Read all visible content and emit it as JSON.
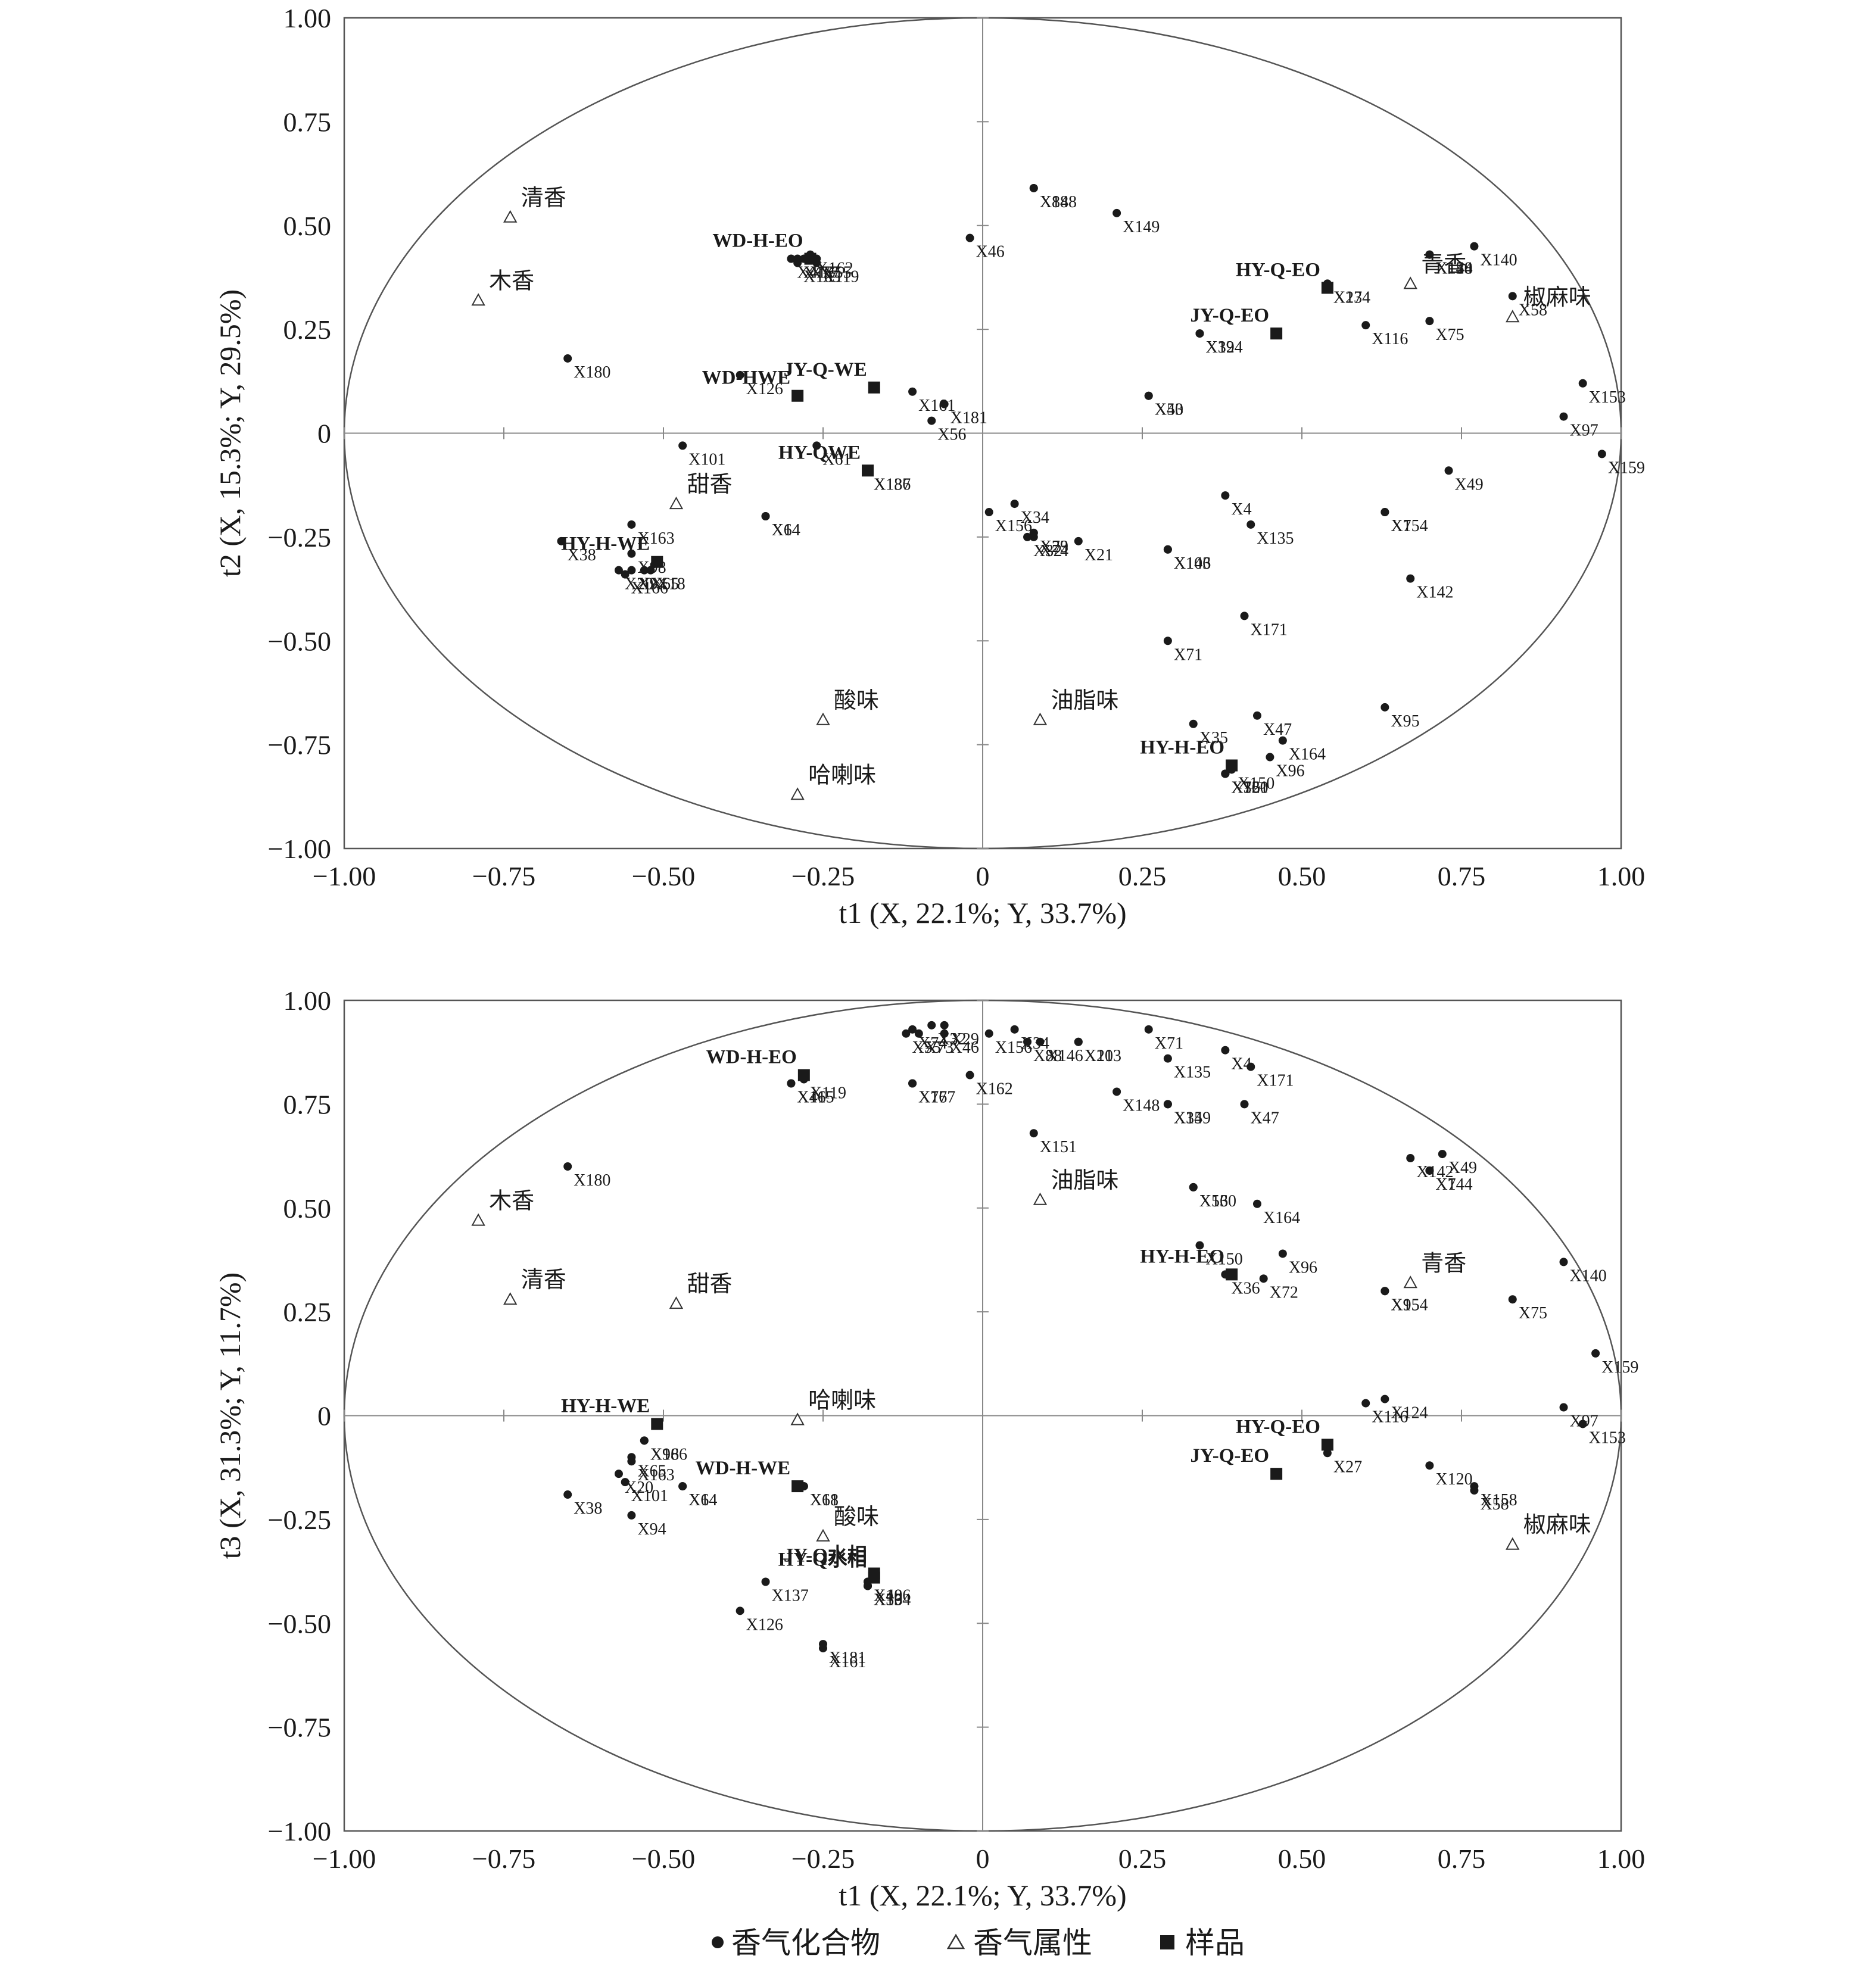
{
  "legend": {
    "compound": "香气化合物",
    "attribute": "香气属性",
    "sample": "样品"
  },
  "chart_data": [
    {
      "type": "scatter",
      "xlabel": "t1 (X, 22.1%; Y, 33.7%)",
      "ylabel": "t2 (X, 15.3%; Y, 29.5%)",
      "xlim": [
        -1,
        1
      ],
      "ylim": [
        -1,
        1
      ],
      "xticks": [
        "−1.00",
        "−0.75",
        "−0.50",
        "−0.25",
        "0",
        "0.25",
        "0.50",
        "0.75",
        "1.00"
      ],
      "yticks": [
        "1.00",
        "0.75",
        "0.50",
        "0.25",
        "0",
        "−0.25",
        "−0.50",
        "−0.75",
        "−1.00"
      ],
      "compounds": [
        {
          "label": "X88",
          "x": 0.08,
          "y": 0.59
        },
        {
          "label": "X148",
          "x": 0.08,
          "y": 0.59
        },
        {
          "label": "X149",
          "x": 0.21,
          "y": 0.53
        },
        {
          "label": "X46",
          "x": -0.02,
          "y": 0.47
        },
        {
          "label": "X167",
          "x": -0.29,
          "y": 0.42
        },
        {
          "label": "X77",
          "x": -0.28,
          "y": 0.42
        },
        {
          "label": "X162",
          "x": -0.27,
          "y": 0.43
        },
        {
          "label": "X55",
          "x": -0.26,
          "y": 0.42
        },
        {
          "label": "X41",
          "x": -0.3,
          "y": 0.42
        },
        {
          "label": "X165",
          "x": -0.29,
          "y": 0.41
        },
        {
          "label": "X119",
          "x": -0.26,
          "y": 0.41
        },
        {
          "label": "X180",
          "x": -0.65,
          "y": 0.18
        },
        {
          "label": "X126",
          "x": -0.38,
          "y": 0.14
        },
        {
          "label": "X161",
          "x": -0.11,
          "y": 0.1
        },
        {
          "label": "X181",
          "x": -0.06,
          "y": 0.07
        },
        {
          "label": "X56",
          "x": -0.08,
          "y": 0.03
        },
        {
          "label": "X101",
          "x": -0.47,
          "y": -0.03
        },
        {
          "label": "X61",
          "x": -0.26,
          "y": -0.03
        },
        {
          "label": "X186",
          "x": -0.18,
          "y": -0.09
        },
        {
          "label": "X137",
          "x": -0.18,
          "y": -0.09
        },
        {
          "label": "X156",
          "x": 0.01,
          "y": -0.19
        },
        {
          "label": "X34",
          "x": 0.05,
          "y": -0.17
        },
        {
          "label": "X32",
          "x": 0.07,
          "y": -0.25
        },
        {
          "label": "X73",
          "x": 0.08,
          "y": -0.24
        },
        {
          "label": "X29",
          "x": 0.08,
          "y": -0.24
        },
        {
          "label": "X21",
          "x": 0.15,
          "y": -0.26
        },
        {
          "label": "X74",
          "x": 0.08,
          "y": -0.25
        },
        {
          "label": "X38",
          "x": -0.66,
          "y": -0.26
        },
        {
          "label": "X163",
          "x": -0.55,
          "y": -0.22
        },
        {
          "label": "X98",
          "x": -0.55,
          "y": -0.29
        },
        {
          "label": "X18",
          "x": -0.52,
          "y": -0.33
        },
        {
          "label": "X20",
          "x": -0.57,
          "y": -0.33
        },
        {
          "label": "X166",
          "x": -0.56,
          "y": -0.34
        },
        {
          "label": "X94",
          "x": -0.55,
          "y": -0.33
        },
        {
          "label": "X65",
          "x": -0.53,
          "y": -0.33
        },
        {
          "label": "X64",
          "x": -0.34,
          "y": -0.2
        },
        {
          "label": "X14",
          "x": -0.34,
          "y": -0.2
        },
        {
          "label": "X4",
          "x": 0.38,
          "y": -0.15
        },
        {
          "label": "X135",
          "x": 0.42,
          "y": -0.22
        },
        {
          "label": "X103",
          "x": 0.29,
          "y": -0.28
        },
        {
          "label": "X146",
          "x": 0.29,
          "y": -0.28
        },
        {
          "label": "X171",
          "x": 0.41,
          "y": -0.44
        },
        {
          "label": "X71",
          "x": 0.29,
          "y": -0.5
        },
        {
          "label": "X7",
          "x": 0.63,
          "y": -0.19
        },
        {
          "label": "X154",
          "x": 0.63,
          "y": -0.19
        },
        {
          "label": "X142",
          "x": 0.67,
          "y": -0.35
        },
        {
          "label": "X49",
          "x": 0.73,
          "y": -0.09
        },
        {
          "label": "X159",
          "x": 0.97,
          "y": -0.05
        },
        {
          "label": "X95",
          "x": 0.63,
          "y": -0.66
        },
        {
          "label": "X47",
          "x": 0.43,
          "y": -0.68
        },
        {
          "label": "X35",
          "x": 0.33,
          "y": -0.7
        },
        {
          "label": "X164",
          "x": 0.47,
          "y": -0.74
        },
        {
          "label": "X96",
          "x": 0.45,
          "y": -0.78
        },
        {
          "label": "X72",
          "x": 0.38,
          "y": -0.82
        },
        {
          "label": "X151",
          "x": 0.38,
          "y": -0.82
        },
        {
          "label": "X150",
          "x": 0.39,
          "y": -0.81
        },
        {
          "label": "X160",
          "x": 0.38,
          "y": -0.82
        },
        {
          "label": "X36",
          "x": 0.38,
          "y": -0.82
        },
        {
          "label": "X140",
          "x": 0.77,
          "y": 0.45
        },
        {
          "label": "X158",
          "x": 0.7,
          "y": 0.43
        },
        {
          "label": "X144",
          "x": 0.7,
          "y": 0.43
        },
        {
          "label": "X120",
          "x": 0.7,
          "y": 0.43
        },
        {
          "label": "X58",
          "x": 0.83,
          "y": 0.33
        },
        {
          "label": "X27",
          "x": 0.54,
          "y": 0.36
        },
        {
          "label": "X134",
          "x": 0.54,
          "y": 0.36
        },
        {
          "label": "X116",
          "x": 0.6,
          "y": 0.26
        },
        {
          "label": "X75",
          "x": 0.7,
          "y": 0.27
        },
        {
          "label": "X39",
          "x": 0.34,
          "y": 0.24
        },
        {
          "label": "X124",
          "x": 0.34,
          "y": 0.24
        },
        {
          "label": "X153",
          "x": 0.94,
          "y": 0.12
        },
        {
          "label": "X97",
          "x": 0.91,
          "y": 0.04
        },
        {
          "label": "X53",
          "x": 0.26,
          "y": 0.09
        },
        {
          "label": "X40",
          "x": 0.26,
          "y": 0.09
        }
      ],
      "attributes": [
        {
          "label": "清香",
          "x": -0.74,
          "y": 0.52
        },
        {
          "label": "木香",
          "x": -0.79,
          "y": 0.32
        },
        {
          "label": "甜香",
          "x": -0.48,
          "y": -0.17
        },
        {
          "label": "酸味",
          "x": -0.25,
          "y": -0.69
        },
        {
          "label": "哈喇味",
          "x": -0.29,
          "y": -0.87
        },
        {
          "label": "油脂味",
          "x": 0.09,
          "y": -0.69
        },
        {
          "label": "青香",
          "x": 0.67,
          "y": 0.36
        },
        {
          "label": "椒麻味",
          "x": 0.83,
          "y": 0.28
        }
      ],
      "samples": [
        {
          "label": "WD-H-EO",
          "x": -0.27,
          "y": 0.42
        },
        {
          "label": "JY-Q-WE",
          "x": -0.17,
          "y": 0.11
        },
        {
          "label": "WD-HWE",
          "x": -0.29,
          "y": 0.09
        },
        {
          "label": "HY-QWE",
          "x": -0.18,
          "y": -0.09
        },
        {
          "label": "HY-H-WE",
          "x": -0.51,
          "y": -0.31
        },
        {
          "label": "HY-Q-EO",
          "x": 0.54,
          "y": 0.35
        },
        {
          "label": "JY-Q-EO",
          "x": 0.46,
          "y": 0.24
        },
        {
          "label": "HY-H-EO",
          "x": 0.39,
          "y": -0.8
        }
      ]
    },
    {
      "type": "scatter",
      "xlabel": "t1 (X, 22.1%; Y, 33.7%)",
      "ylabel": "t3 (X, 31.3%; Y, 11.7%)",
      "xlim": [
        -1,
        1
      ],
      "ylim": [
        -1,
        1
      ],
      "xticks": [
        "−1.00",
        "−0.75",
        "−0.50",
        "−0.25",
        "0",
        "0.25",
        "0.50",
        "0.75",
        "1.00"
      ],
      "yticks": [
        "1.00",
        "0.75",
        "0.50",
        "0.25",
        "0",
        "−0.25",
        "−0.50",
        "−0.75",
        "−1.00"
      ],
      "compounds": [
        {
          "label": "X74",
          "x": -0.11,
          "y": 0.93
        },
        {
          "label": "X32",
          "x": -0.08,
          "y": 0.94
        },
        {
          "label": "X29",
          "x": -0.06,
          "y": 0.94
        },
        {
          "label": "X55",
          "x": -0.12,
          "y": 0.92
        },
        {
          "label": "X73",
          "x": -0.1,
          "y": 0.92
        },
        {
          "label": "X46",
          "x": -0.06,
          "y": 0.92
        },
        {
          "label": "X156",
          "x": 0.01,
          "y": 0.92
        },
        {
          "label": "X34",
          "x": 0.05,
          "y": 0.93
        },
        {
          "label": "X146",
          "x": 0.09,
          "y": 0.9
        },
        {
          "label": "X21",
          "x": 0.15,
          "y": 0.9
        },
        {
          "label": "X88",
          "x": 0.07,
          "y": 0.9
        },
        {
          "label": "X103",
          "x": 0.15,
          "y": 0.9
        },
        {
          "label": "X162",
          "x": -0.02,
          "y": 0.82
        },
        {
          "label": "X71",
          "x": 0.26,
          "y": 0.93
        },
        {
          "label": "X4",
          "x": 0.38,
          "y": 0.88
        },
        {
          "label": "X135",
          "x": 0.29,
          "y": 0.86
        },
        {
          "label": "X171",
          "x": 0.42,
          "y": 0.84
        },
        {
          "label": "X165",
          "x": -0.3,
          "y": 0.8
        },
        {
          "label": "X41",
          "x": -0.3,
          "y": 0.8
        },
        {
          "label": "X119",
          "x": -0.28,
          "y": 0.81
        },
        {
          "label": "X167",
          "x": -0.11,
          "y": 0.8
        },
        {
          "label": "X77",
          "x": -0.11,
          "y": 0.8
        },
        {
          "label": "X148",
          "x": 0.21,
          "y": 0.78
        },
        {
          "label": "X149",
          "x": 0.29,
          "y": 0.75
        },
        {
          "label": "X35",
          "x": 0.29,
          "y": 0.75
        },
        {
          "label": "X47",
          "x": 0.41,
          "y": 0.75
        },
        {
          "label": "X180",
          "x": -0.65,
          "y": 0.6
        },
        {
          "label": "X151",
          "x": 0.08,
          "y": 0.68
        },
        {
          "label": "X53",
          "x": 0.33,
          "y": 0.55
        },
        {
          "label": "X164",
          "x": 0.43,
          "y": 0.51
        },
        {
          "label": "X160",
          "x": 0.33,
          "y": 0.55
        },
        {
          "label": "X150",
          "x": 0.34,
          "y": 0.41
        },
        {
          "label": "X96",
          "x": 0.47,
          "y": 0.39
        },
        {
          "label": "X36",
          "x": 0.38,
          "y": 0.34
        },
        {
          "label": "X72",
          "x": 0.44,
          "y": 0.33
        },
        {
          "label": "X142",
          "x": 0.67,
          "y": 0.62
        },
        {
          "label": "X144",
          "x": 0.7,
          "y": 0.59
        },
        {
          "label": "X49",
          "x": 0.72,
          "y": 0.63
        },
        {
          "label": "X7",
          "x": 0.7,
          "y": 0.59
        },
        {
          "label": "X95",
          "x": 0.63,
          "y": 0.3
        },
        {
          "label": "X140",
          "x": 0.91,
          "y": 0.37
        },
        {
          "label": "X154",
          "x": 0.63,
          "y": 0.3
        },
        {
          "label": "X75",
          "x": 0.83,
          "y": 0.28
        },
        {
          "label": "X159",
          "x": 0.96,
          "y": 0.15
        },
        {
          "label": "X124",
          "x": 0.63,
          "y": 0.04
        },
        {
          "label": "X116",
          "x": 0.6,
          "y": 0.03
        },
        {
          "label": "X97",
          "x": 0.91,
          "y": 0.02
        },
        {
          "label": "X153",
          "x": 0.94,
          "y": -0.02
        },
        {
          "label": "X27",
          "x": 0.54,
          "y": -0.09
        },
        {
          "label": "X120",
          "x": 0.7,
          "y": -0.12
        },
        {
          "label": "X158",
          "x": 0.77,
          "y": -0.17
        },
        {
          "label": "X58",
          "x": 0.77,
          "y": -0.18
        },
        {
          "label": "X166",
          "x": -0.53,
          "y": -0.06
        },
        {
          "label": "X98",
          "x": -0.53,
          "y": -0.06
        },
        {
          "label": "X163",
          "x": -0.55,
          "y": -0.11
        },
        {
          "label": "X14",
          "x": -0.47,
          "y": -0.17
        },
        {
          "label": "X65",
          "x": -0.55,
          "y": -0.1
        },
        {
          "label": "X20",
          "x": -0.57,
          "y": -0.14
        },
        {
          "label": "X101",
          "x": -0.56,
          "y": -0.16
        },
        {
          "label": "X94",
          "x": -0.55,
          "y": -0.24
        },
        {
          "label": "X38",
          "x": -0.65,
          "y": -0.19
        },
        {
          "label": "X61",
          "x": -0.28,
          "y": -0.17
        },
        {
          "label": "X18",
          "x": -0.28,
          "y": -0.17
        },
        {
          "label": "X64",
          "x": -0.47,
          "y": -0.17
        },
        {
          "label": "X40",
          "x": -0.18,
          "y": -0.4
        },
        {
          "label": "X186",
          "x": -0.18,
          "y": -0.4
        },
        {
          "label": "X137",
          "x": -0.34,
          "y": -0.4
        },
        {
          "label": "X56",
          "x": -0.18,
          "y": -0.41
        },
        {
          "label": "X134",
          "x": -0.18,
          "y": -0.41
        },
        {
          "label": "X39",
          "x": -0.18,
          "y": -0.41
        },
        {
          "label": "X126",
          "x": -0.38,
          "y": -0.47
        },
        {
          "label": "X181",
          "x": -0.25,
          "y": -0.55
        },
        {
          "label": "X161",
          "x": -0.25,
          "y": -0.56
        }
      ],
      "attributes": [
        {
          "label": "木香",
          "x": -0.79,
          "y": 0.47
        },
        {
          "label": "清香",
          "x": -0.74,
          "y": 0.28
        },
        {
          "label": "甜香",
          "x": -0.48,
          "y": 0.27
        },
        {
          "label": "油脂味",
          "x": 0.09,
          "y": 0.52
        },
        {
          "label": "青香",
          "x": 0.67,
          "y": 0.32
        },
        {
          "label": "哈喇味",
          "x": -0.29,
          "y": -0.01
        },
        {
          "label": "酸味",
          "x": -0.25,
          "y": -0.29
        },
        {
          "label": "椒麻味",
          "x": 0.83,
          "y": -0.31
        }
      ],
      "samples": [
        {
          "label": "WD-H-EO",
          "x": -0.28,
          "y": 0.82
        },
        {
          "label": "HY-H-EO",
          "x": 0.39,
          "y": 0.34
        },
        {
          "label": "HY-H-WE",
          "x": -0.51,
          "y": -0.02
        },
        {
          "label": "WD-H-WE",
          "x": -0.29,
          "y": -0.17
        },
        {
          "label": "JY-Q水相",
          "x": -0.17,
          "y": -0.38
        },
        {
          "label": "HY-Q水相",
          "x": -0.17,
          "y": -0.39
        },
        {
          "label": "HY-Q-EO",
          "x": 0.54,
          "y": -0.07
        },
        {
          "label": "JY-Q-EO",
          "x": 0.46,
          "y": -0.14
        }
      ]
    }
  ]
}
